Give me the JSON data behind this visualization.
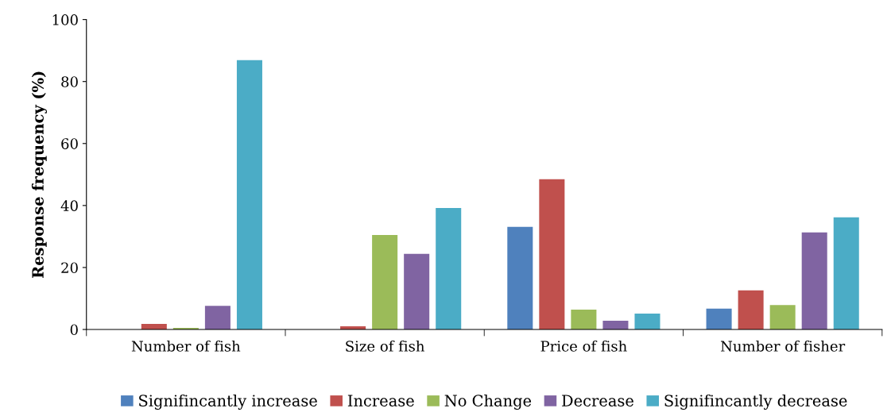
{
  "chart_data": {
    "type": "bar",
    "ylabel": "Response frequency (%)",
    "categories": [
      "Number of fish",
      "Size of fish",
      "Price of fish",
      "Number of fisher"
    ],
    "series": [
      {
        "name": "Signifincantly increase",
        "color": "#4f81bd",
        "values": [
          0,
          0,
          33.1,
          6.7
        ]
      },
      {
        "name": "Increase",
        "color": "#c0504d",
        "values": [
          1.8,
          1.0,
          48.5,
          12.6
        ]
      },
      {
        "name": "No Change",
        "color": "#9bbb59",
        "values": [
          0.5,
          30.5,
          6.4,
          7.9
        ]
      },
      {
        "name": "Decrease",
        "color": "#8064a2",
        "values": [
          7.6,
          24.4,
          2.8,
          31.3
        ]
      },
      {
        "name": "Signifincantly decrease",
        "color": "#4bacc6",
        "values": [
          86.9,
          39.2,
          5.1,
          36.2
        ]
      }
    ],
    "ylim": [
      0,
      100
    ],
    "yticks": [
      0,
      20,
      40,
      60,
      80,
      100
    ],
    "grid": false,
    "legend": "bottom"
  }
}
